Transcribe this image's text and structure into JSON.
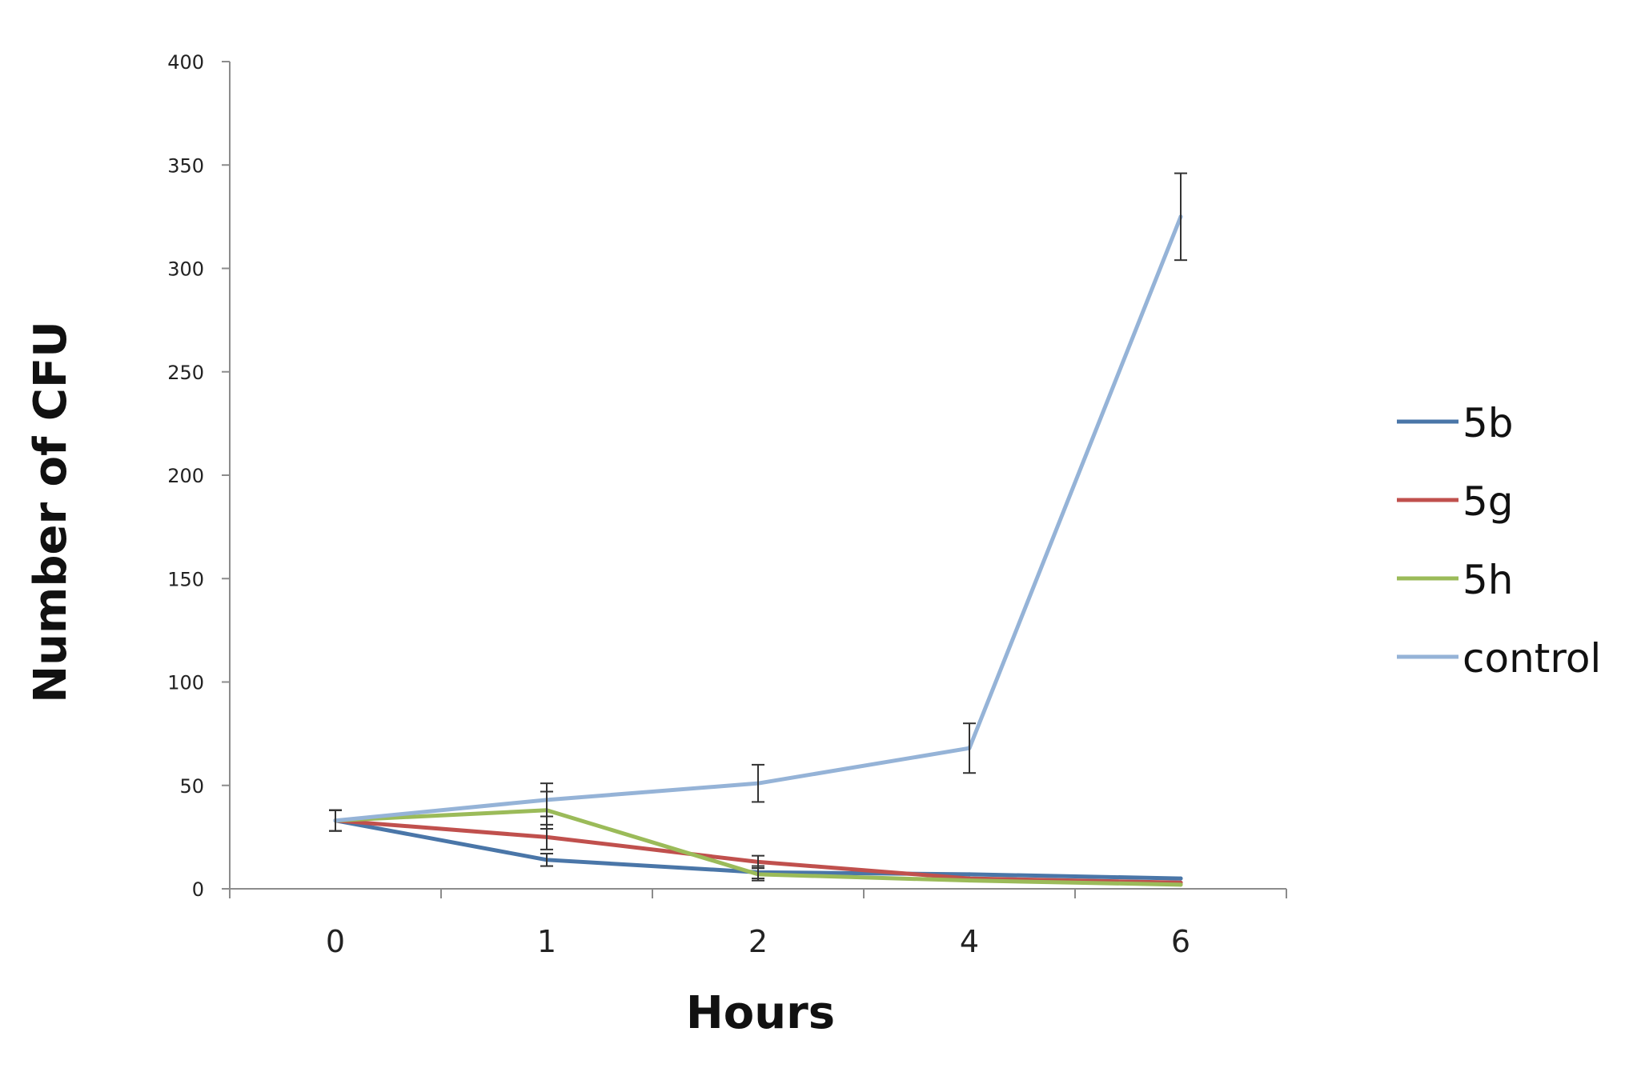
{
  "chart_data": {
    "type": "line",
    "title": "",
    "xlabel": "Hours",
    "ylabel": "Number of CFU",
    "categories": [
      "0",
      "1",
      "2",
      "4",
      "6"
    ],
    "yticks": [
      "0",
      "50",
      "100",
      "150",
      "200",
      "250",
      "300",
      "350",
      "400"
    ],
    "ylim": [
      0,
      400
    ],
    "grid": false,
    "legend": "right",
    "series": [
      {
        "name": "5b",
        "color": "#4a76a8",
        "values": [
          33,
          14,
          8,
          7,
          5
        ],
        "errors": [
          5,
          3,
          3,
          0,
          0
        ]
      },
      {
        "name": "5g",
        "color": "#c0504d",
        "values": [
          33,
          25,
          13,
          5,
          3
        ],
        "errors": [
          5,
          6,
          3,
          0,
          0
        ]
      },
      {
        "name": "5h",
        "color": "#9bbb59",
        "values": [
          33,
          38,
          7,
          4,
          2
        ],
        "errors": [
          5,
          9,
          3,
          0,
          0
        ]
      },
      {
        "name": "control",
        "color": "#95b3d7",
        "values": [
          33,
          43,
          51,
          68,
          325
        ],
        "errors": [
          5,
          8,
          9,
          12,
          21
        ]
      }
    ]
  }
}
